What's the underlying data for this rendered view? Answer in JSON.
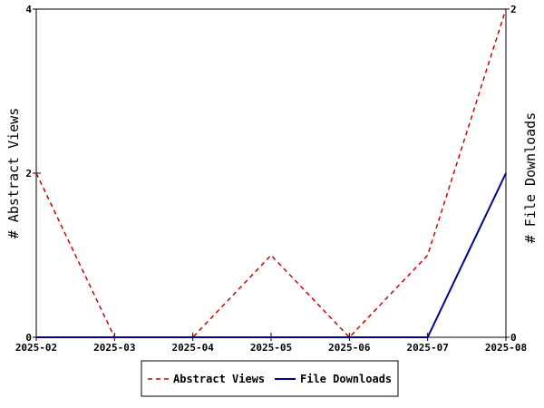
{
  "chart_data": {
    "type": "line",
    "title": "",
    "x": [
      "2025-02",
      "2025-03",
      "2025-04",
      "2025-05",
      "2025-06",
      "2025-07",
      "2025-08"
    ],
    "ylabel_left": "# Abstract Views",
    "ylabel_right": "# File Downloads",
    "ylim_left": [
      0,
      4
    ],
    "ylim_right": [
      0,
      2
    ],
    "yticks_left": [
      "0",
      "2",
      "4"
    ],
    "yticks_right": [
      "0",
      "2"
    ],
    "grid": false,
    "legend_position": "bottom-center",
    "series": [
      {
        "name": "Abstract Views",
        "axis": "left",
        "color": "#cc0000",
        "style": "dashed",
        "values": [
          2,
          0,
          0,
          1,
          0,
          1,
          4
        ]
      },
      {
        "name": "File Downloads",
        "axis": "right",
        "color": "#00008b",
        "style": "solid",
        "values": [
          0,
          0,
          0,
          0,
          0,
          0,
          1
        ]
      }
    ]
  }
}
